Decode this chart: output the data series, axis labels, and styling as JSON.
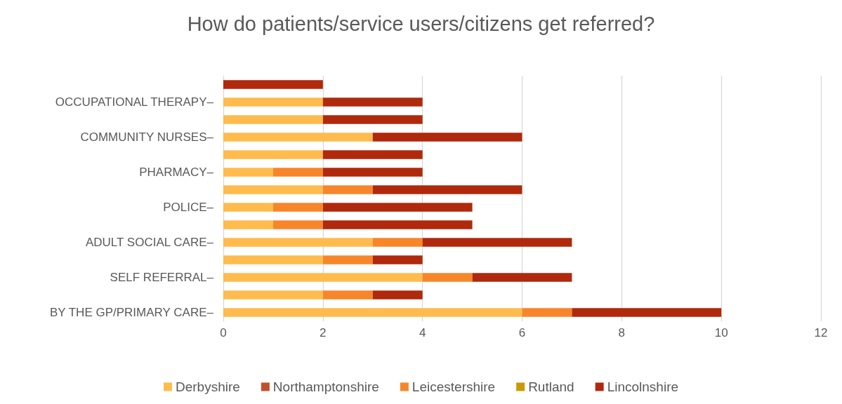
{
  "chart_data": {
    "type": "bar",
    "title": "How do patients/service users/citizens get referred?",
    "orientation": "horizontal",
    "stacked": true,
    "categories": [
      null,
      "OCCUPATIONAL THERAPY–",
      null,
      "COMMUNITY NURSES–",
      null,
      "PHARMACY–",
      null,
      "POLICE–",
      null,
      "ADULT SOCIAL CARE–",
      null,
      "SELF REFERRAL–",
      null,
      "BY THE GP/PRIMARY CARE–"
    ],
    "series": [
      {
        "name": "Derbyshire",
        "color": "#ffbb4d",
        "values": [
          null,
          2,
          2,
          3,
          2,
          1,
          2,
          1,
          1,
          3,
          2,
          4,
          2,
          6
        ]
      },
      {
        "name": "Northamptonshire",
        "color": "#c0502b",
        "values": [
          null,
          null,
          null,
          null,
          null,
          null,
          null,
          null,
          null,
          null,
          null,
          null,
          null,
          null
        ]
      },
      {
        "name": "Leicestershire",
        "color": "#f7862b",
        "values": [
          null,
          null,
          null,
          null,
          null,
          1,
          1,
          1,
          1,
          1,
          1,
          1,
          1,
          1
        ]
      },
      {
        "name": "Rutland",
        "color": "#c99a06",
        "values": [
          null,
          null,
          null,
          null,
          null,
          null,
          null,
          null,
          null,
          null,
          null,
          null,
          null,
          null
        ]
      },
      {
        "name": "Lincolnshire",
        "color": "#b0290c",
        "values": [
          2,
          2,
          2,
          3,
          2,
          2,
          3,
          3,
          3,
          3,
          1,
          2,
          1,
          3
        ]
      }
    ],
    "xlim": [
      0,
      12
    ],
    "xticks": [
      0,
      2,
      4,
      6,
      8,
      10,
      12
    ],
    "grid": "x",
    "legend": "bottom"
  }
}
